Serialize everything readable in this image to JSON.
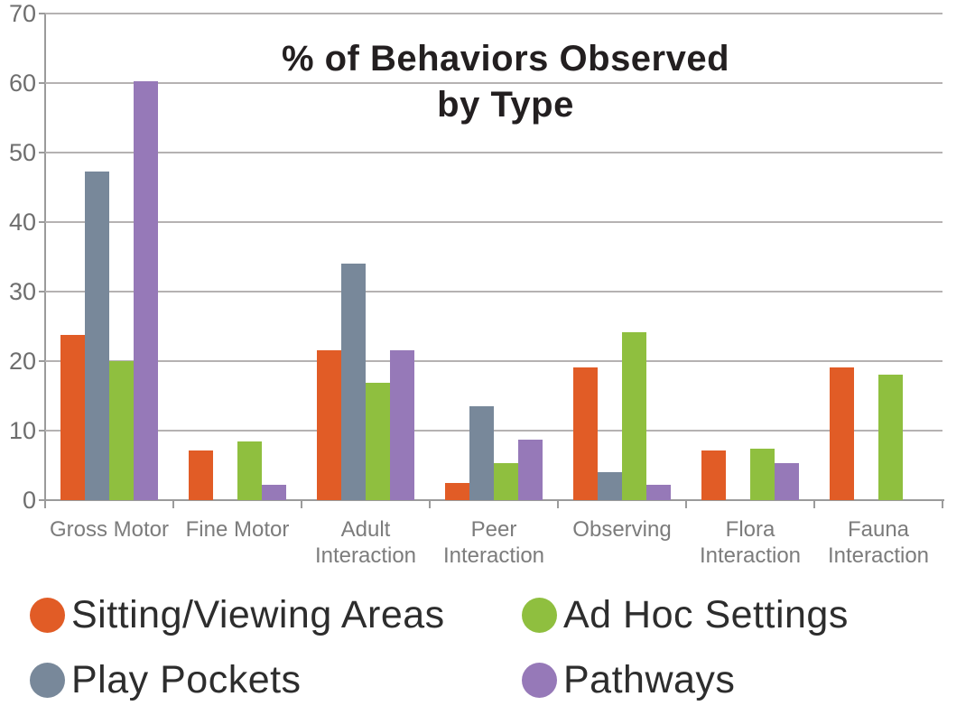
{
  "title": {
    "line1": "% of Behaviors Observed",
    "line2": "by Type"
  },
  "chart_data": {
    "type": "bar",
    "title": "% of Behaviors Observed by Type",
    "categories": [
      "Gross Motor",
      "Fine Motor",
      "Adult Interaction",
      "Peer Interaction",
      "Observing",
      "Flora Interaction",
      "Fauna Interaction"
    ],
    "xlabel_lines": [
      [
        "Gross Motor"
      ],
      [
        "Fine Motor"
      ],
      [
        "Adult",
        "Interaction"
      ],
      [
        "Peer",
        "Interaction"
      ],
      [
        "Observing"
      ],
      [
        "Flora",
        "Interaction"
      ],
      [
        "Fauna",
        "Interaction"
      ]
    ],
    "series": [
      {
        "name": "Sitting/Viewing Areas",
        "color": "#E15C26",
        "values": [
          23.8,
          7.2,
          21.5,
          2.5,
          19.1,
          7.2,
          19.1
        ]
      },
      {
        "name": "Play Pockets",
        "color": "#78889A",
        "values": [
          47.3,
          0,
          34,
          13.5,
          4,
          0,
          0
        ]
      },
      {
        "name": "Ad Hoc Settings",
        "color": "#8FBF3F",
        "values": [
          20,
          8.4,
          16.9,
          5.3,
          24.2,
          7.4,
          18
        ]
      },
      {
        "name": "Pathways",
        "color": "#9679B8",
        "values": [
          60.3,
          2.2,
          21.6,
          8.7,
          2.2,
          5.3,
          0
        ]
      }
    ],
    "ylabel": "",
    "xlabel": "",
    "ylim": [
      0,
      70
    ],
    "yticks": [
      0,
      10,
      20,
      30,
      40,
      50,
      60,
      70
    ],
    "grid": true,
    "legend_position": "bottom"
  },
  "legend": {
    "layout": [
      {
        "series_index": 0,
        "col": 0,
        "row": 0
      },
      {
        "series_index": 1,
        "col": 0,
        "row": 1
      },
      {
        "series_index": 2,
        "col": 1,
        "row": 0
      },
      {
        "series_index": 3,
        "col": 1,
        "row": 1
      }
    ]
  }
}
